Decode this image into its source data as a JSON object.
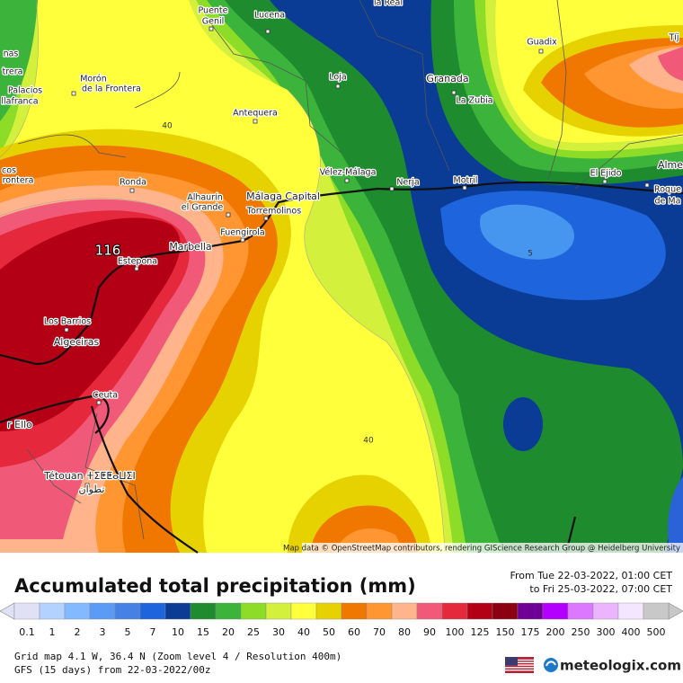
{
  "map": {
    "places": [
      "Puente",
      "Genil",
      "Lucena",
      "la Real",
      "Guadix",
      "Granada",
      "Loja",
      "La Zubia",
      "Morón",
      "de la Frontera",
      "Antequera",
      "Palacios",
      "llafranca",
      "trera",
      "nas",
      "cos",
      "rontera",
      "Vélez-Málaga",
      "Nerja",
      "Motril",
      "El Ejido",
      "Alme",
      "Roque",
      "de Ma",
      "Ronda",
      "Alhaurín",
      "el Grande",
      "Málaga Capital",
      "Torremolinos",
      "Fuengirola",
      "Marbella",
      "Estepona",
      "Los Barrios",
      "Algeciras",
      "Ceuta",
      "r Ello",
      "Tétouan ⵜⵉⵟⵟⴰⵡⵉⵏ",
      "تطوان",
      "Tíj"
    ],
    "contour_labels": [
      "40",
      "116",
      "5",
      "40"
    ],
    "attribution": "Map data © OpenStreetMap contributors, rendering GIScience Research Group @ Heidelberg University"
  },
  "header": {
    "title": "Accumulated total precipitation (mm)",
    "from": "From Tue 22-03-2022, 01:00 CET",
    "to": "to Fri 25-03-2022, 07:00 CET"
  },
  "legend": [
    {
      "label": "0.1",
      "color": "#e1e1f5"
    },
    {
      "label": "1",
      "color": "#b4d2ff"
    },
    {
      "label": "2",
      "color": "#82b9ff"
    },
    {
      "label": "3",
      "color": "#5a9bf5"
    },
    {
      "label": "5",
      "color": "#4682e6"
    },
    {
      "label": "7",
      "color": "#1e64dc"
    },
    {
      "label": "10",
      "color": "#0a3c96"
    },
    {
      "label": "15",
      "color": "#1e8c2e"
    },
    {
      "label": "20",
      "color": "#3cb43c"
    },
    {
      "label": "25",
      "color": "#8cdc28"
    },
    {
      "label": "30",
      "color": "#d2f03c"
    },
    {
      "label": "40",
      "color": "#ffff3c"
    },
    {
      "label": "50",
      "color": "#e6d200"
    },
    {
      "label": "60",
      "color": "#f07800"
    },
    {
      "label": "70",
      "color": "#ff9632"
    },
    {
      "label": "80",
      "color": "#ffb48c"
    },
    {
      "label": "90",
      "color": "#f05a78"
    },
    {
      "label": "100",
      "color": "#e6283c"
    },
    {
      "label": "125",
      "color": "#b40014"
    },
    {
      "label": "150",
      "color": "#8c0014"
    },
    {
      "label": "175",
      "color": "#6e0096"
    },
    {
      "label": "200",
      "color": "#b400ff"
    },
    {
      "label": "250",
      "color": "#dc78ff"
    },
    {
      "label": "300",
      "color": "#ebb4ff"
    },
    {
      "label": "400",
      "color": "#f5e6ff"
    },
    {
      "label": "500",
      "color": "#c8c8c8"
    }
  ],
  "footer": {
    "grid": "Grid map 4.1 W, 36.4 N (Zoom level 4 / Resolution 400m)",
    "model": "GFS (15 days) from 22-03-2022/00z",
    "brand": "meteologix.com"
  }
}
